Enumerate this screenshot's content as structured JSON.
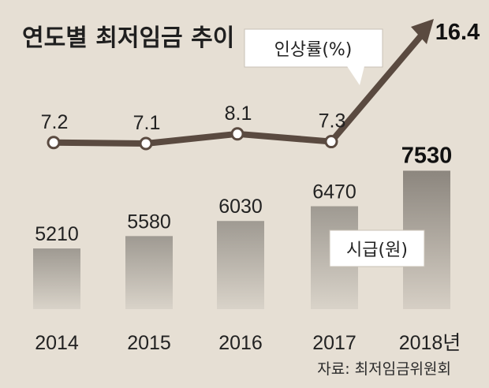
{
  "title": "연도별 최저임금 추이",
  "source": "자료: 최저임금위원회",
  "chart_data": {
    "type": "bar",
    "categories": [
      "2014",
      "2015",
      "2016",
      "2017",
      "2018년"
    ],
    "series": [
      {
        "name": "시급(원)",
        "type": "bar",
        "values": [
          5210,
          5580,
          6030,
          6470,
          7530
        ],
        "color": "#a39d94"
      },
      {
        "name": "인상률(%)",
        "type": "line",
        "values": [
          7.2,
          7.1,
          8.1,
          7.3,
          16.4
        ],
        "color": "#5a4a40"
      }
    ],
    "highlight_last": true
  }
}
